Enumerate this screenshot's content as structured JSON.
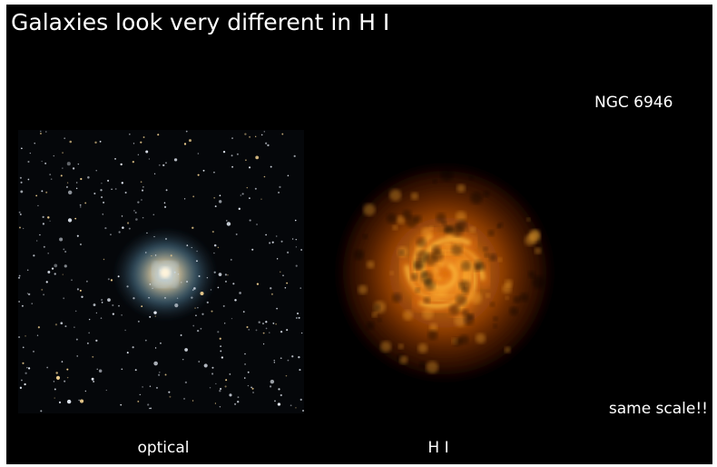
{
  "slide": {
    "title": "Galaxies look very different in H I",
    "object": "NGC 6946",
    "left_caption": "optical",
    "right_caption": "H I",
    "note": "same scale!!"
  }
}
